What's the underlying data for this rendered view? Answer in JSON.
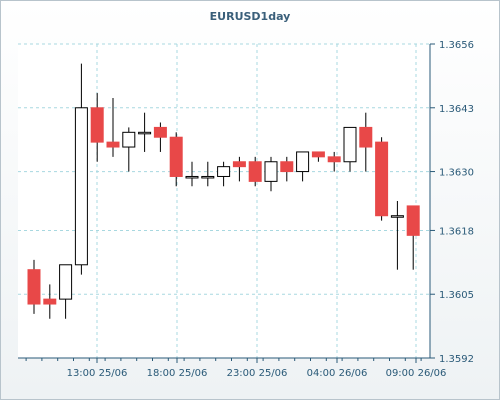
{
  "chart_data": {
    "type": "candlestick",
    "title": "EURUSD1day",
    "ylim": [
      1.3592,
      1.3656
    ],
    "y_ticks": [
      "1.3656",
      "1.3643",
      "1.3630",
      "1.3618",
      "1.3605",
      "1.3592"
    ],
    "x_ticks": [
      "13:00 25/06",
      "18:00 25/06",
      "23:00 25/06",
      "04:00 26/06",
      "09:00 26/06"
    ],
    "grid": true,
    "colors": {
      "up_fill": "#ffffff",
      "down_fill": "#e84848",
      "wick": "#000000",
      "grid": "#a8d8e0"
    },
    "candles": [
      {
        "open": 1.361,
        "high": 1.3612,
        "low": 1.3601,
        "close": 1.3603
      },
      {
        "open": 1.3604,
        "high": 1.3607,
        "low": 1.36,
        "close": 1.3603
      },
      {
        "open": 1.3604,
        "high": 1.3611,
        "low": 1.36,
        "close": 1.3611
      },
      {
        "open": 1.3611,
        "high": 1.3652,
        "low": 1.3609,
        "close": 1.3643
      },
      {
        "open": 1.3643,
        "high": 1.3646,
        "low": 1.3632,
        "close": 1.3636
      },
      {
        "open": 1.3636,
        "high": 1.3645,
        "low": 1.3633,
        "close": 1.3635
      },
      {
        "open": 1.3635,
        "high": 1.3639,
        "low": 1.363,
        "close": 1.3638
      },
      {
        "open": 1.3638,
        "high": 1.3642,
        "low": 1.3634,
        "close": 1.3638
      },
      {
        "open": 1.3639,
        "high": 1.364,
        "low": 1.3634,
        "close": 1.3637
      },
      {
        "open": 1.3637,
        "high": 1.3638,
        "low": 1.3627,
        "close": 1.3629
      },
      {
        "open": 1.3629,
        "high": 1.3632,
        "low": 1.3627,
        "close": 1.3629
      },
      {
        "open": 1.3629,
        "high": 1.3632,
        "low": 1.3627,
        "close": 1.3629
      },
      {
        "open": 1.3629,
        "high": 1.3632,
        "low": 1.3627,
        "close": 1.3631
      },
      {
        "open": 1.3632,
        "high": 1.3633,
        "low": 1.3628,
        "close": 1.3631
      },
      {
        "open": 1.3632,
        "high": 1.3633,
        "low": 1.3627,
        "close": 1.3628
      },
      {
        "open": 1.3628,
        "high": 1.3633,
        "low": 1.3626,
        "close": 1.3632
      },
      {
        "open": 1.3632,
        "high": 1.3633,
        "low": 1.3628,
        "close": 1.363
      },
      {
        "open": 1.363,
        "high": 1.3634,
        "low": 1.3628,
        "close": 1.3634
      },
      {
        "open": 1.3634,
        "high": 1.3634,
        "low": 1.3632,
        "close": 1.3633
      },
      {
        "open": 1.3633,
        "high": 1.3634,
        "low": 1.363,
        "close": 1.3632
      },
      {
        "open": 1.3632,
        "high": 1.3639,
        "low": 1.363,
        "close": 1.3639
      },
      {
        "open": 1.3639,
        "high": 1.3642,
        "low": 1.363,
        "close": 1.3635
      },
      {
        "open": 1.3636,
        "high": 1.3637,
        "low": 1.362,
        "close": 1.3621
      },
      {
        "open": 1.3621,
        "high": 1.3624,
        "low": 1.361,
        "close": 1.3621
      },
      {
        "open": 1.3623,
        "high": 1.3623,
        "low": 1.361,
        "close": 1.3617
      }
    ]
  }
}
